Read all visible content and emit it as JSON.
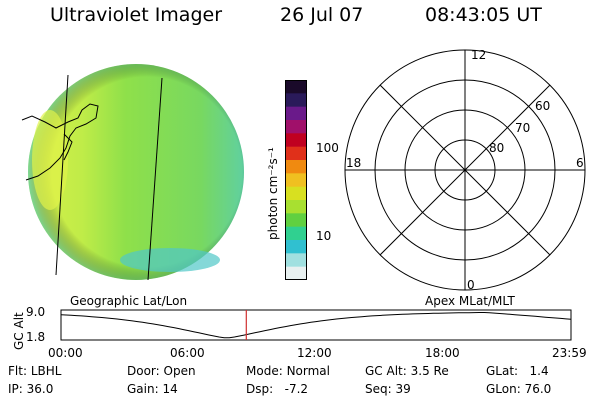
{
  "header": {
    "instrument": "Ultraviolet Imager",
    "date": "26 Jul 07",
    "time": "08:43:05 UT"
  },
  "colorbar": {
    "unit_label": "photon cm⁻²s⁻¹",
    "tick_labels": [
      "100",
      "10"
    ],
    "colors": [
      "#1a0a2a",
      "#2a1a5a",
      "#6a1a8a",
      "#a0106a",
      "#c00020",
      "#e0301a",
      "#f08a10",
      "#f0c020",
      "#d8e020",
      "#a8e030",
      "#60d040",
      "#30d090",
      "#30c0d0",
      "#a0e0e0",
      "#e8f0f0"
    ]
  },
  "geographic_panel": {
    "title": "Geographic Lat/Lon",
    "disk_colors": {
      "base": "#8fe04a",
      "bright": "#d8f04a",
      "dim": "#40c8c8"
    }
  },
  "polar_panel": {
    "title": "Apex MLat/MLT",
    "mlt_labels": {
      "top": "12",
      "left": "18",
      "right": "6",
      "bottom": "0"
    },
    "lat_labels": [
      "60",
      "70",
      "80"
    ]
  },
  "altitude_plot": {
    "ylabel": "GC Alt",
    "y_ticks": [
      "9.0",
      "1.8"
    ],
    "x_ticks": [
      "00:00",
      "06:00",
      "12:00",
      "18:00",
      "23:59"
    ],
    "marker_time_hours": 8.72,
    "marker_color": "#d03030"
  },
  "info_rows": [
    [
      {
        "label": "Flt:",
        "value": "LBHL"
      },
      {
        "label": "Door:",
        "value": "Open"
      },
      {
        "label": "Mode:",
        "value": "Normal"
      },
      {
        "label": "GC Alt:",
        "value": "3.5 Re"
      },
      {
        "label": "GLat:",
        "value": "1.4"
      }
    ],
    [
      {
        "label": "IP:",
        "value": "36.0"
      },
      {
        "label": "Gain:",
        "value": "14"
      },
      {
        "label": "Dsp:",
        "value": "-7.2"
      },
      {
        "label": "Seq:",
        "value": "39"
      },
      {
        "label": "GLon:",
        "value": "76.0"
      }
    ]
  ]
}
